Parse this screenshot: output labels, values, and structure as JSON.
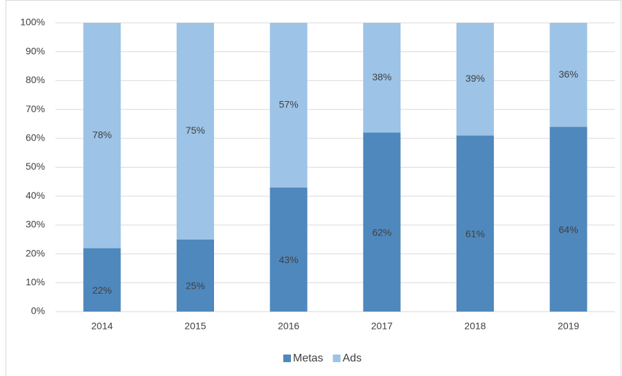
{
  "chart_data": {
    "type": "stacked_bar",
    "categories": [
      "2014",
      "2015",
      "2016",
      "2017",
      "2018",
      "2019"
    ],
    "series": [
      {
        "name": "Metas",
        "color": "#4f88bd",
        "values": [
          22,
          25,
          43,
          62,
          61,
          64
        ],
        "value_labels": [
          "22%",
          "25%",
          "43%",
          "62%",
          "61%",
          "64%"
        ]
      },
      {
        "name": "Ads",
        "color": "#9dc3e6",
        "values": [
          78,
          75,
          57,
          38,
          39,
          36
        ],
        "value_labels": [
          "78%",
          "75%",
          "57%",
          "38%",
          "39%",
          "36%"
        ]
      }
    ],
    "ylim": [
      0,
      100
    ],
    "yticks": [
      {
        "value": 0,
        "label": "0%"
      },
      {
        "value": 10,
        "label": "10%"
      },
      {
        "value": 20,
        "label": "20%"
      },
      {
        "value": 30,
        "label": "30%"
      },
      {
        "value": 40,
        "label": "40%"
      },
      {
        "value": 50,
        "label": "50%"
      },
      {
        "value": 60,
        "label": "60%"
      },
      {
        "value": 70,
        "label": "70%"
      },
      {
        "value": 80,
        "label": "80%"
      },
      {
        "value": 90,
        "label": "90%"
      },
      {
        "value": 100,
        "label": "100%"
      }
    ],
    "grid": true,
    "legend": "bottom"
  }
}
